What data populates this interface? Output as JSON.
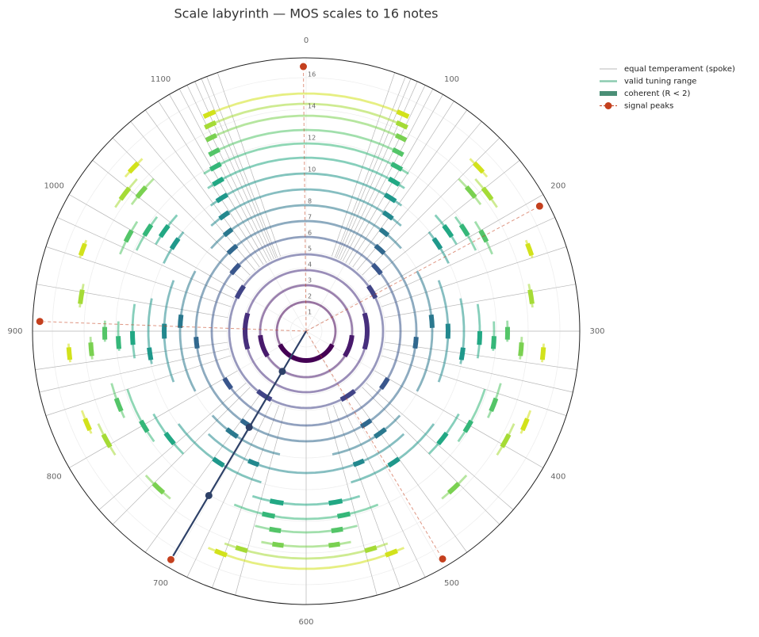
{
  "chart_data": {
    "type": "polar",
    "title": "Scale labyrinth — MOS scales to 16 notes",
    "theta_lim": [
      0,
      1200
    ],
    "theta_ticks": [
      0,
      100,
      200,
      300,
      400,
      500,
      600,
      700,
      800,
      900,
      1000,
      1100
    ],
    "rlim": [
      0,
      17.25
    ],
    "rticks": [
      1,
      2,
      3,
      4,
      5,
      6,
      7,
      8,
      10,
      12,
      14,
      16
    ],
    "legend": "upper right",
    "spokes": {
      "name": "equal temperament (spoke)",
      "color": "#b8b8b8",
      "values": [
        63,
        71,
        75,
        80,
        86,
        92,
        100,
        109,
        120,
        133,
        150,
        171,
        200,
        218,
        240,
        267,
        300,
        327,
        343,
        360,
        400,
        436,
        450,
        480,
        514,
        533,
        550,
        600,
        650,
        667,
        686,
        720,
        750,
        764,
        800,
        840,
        857,
        873,
        900,
        933,
        960,
        982,
        1000,
        1029,
        1050,
        1067,
        1080,
        1091,
        1100,
        1108,
        1114,
        1120,
        1125,
        1129,
        1137
      ]
    },
    "rings": {
      "name": "valid tuning range",
      "legend_color": "#8ccbb0",
      "coherent_name": "coherent (R < 2)",
      "coherent_color": "#4a8f76",
      "items": [
        {
          "level": 1.85,
          "color": "#440154",
          "arcs": [
            [
              0,
              1200
            ]
          ],
          "coherent": [
            [
              390,
              810
            ]
          ]
        },
        {
          "level": 2.9,
          "color": "#481a6c",
          "arcs": [
            [
              0,
              1200
            ]
          ],
          "coherent": [
            [
              317,
              410
            ],
            [
              790,
              883
            ]
          ]
        },
        {
          "level": 3.85,
          "color": "#472f7d",
          "arcs": [
            [
              0,
              1200
            ]
          ],
          "coherent": [
            [
              243,
              357
            ],
            [
              843,
              957
            ]
          ]
        },
        {
          "level": 4.85,
          "color": "#414487",
          "arcs": [
            [
              0,
              1200
            ]
          ],
          "coherent": [
            [
              180,
              215
            ],
            [
              985,
              1020
            ],
            [
              470,
              510
            ],
            [
              690,
              730
            ]
          ]
        },
        {
          "level": 5.95,
          "color": "#39568c",
          "arcs": [
            [
              0,
              1200
            ]
          ],
          "coherent": [
            [
              150,
              175
            ],
            [
              1025,
              1050
            ],
            [
              400,
              425
            ],
            [
              775,
              800
            ]
          ]
        },
        {
          "level": 6.95,
          "color": "#31688e",
          "arcs": [
            [
              0,
              1200
            ]
          ],
          "coherent": [
            [
              130,
              150
            ],
            [
              1050,
              1070
            ],
            [
              310,
              330
            ],
            [
              870,
              890
            ],
            [
              480,
              500
            ],
            [
              700,
              720
            ]
          ]
        },
        {
          "level": 7.95,
          "color": "#2a788e",
          "arcs": [
            [
              1037,
              163
            ],
            [
              205,
              395
            ],
            [
              440,
              560
            ],
            [
              640,
              760
            ],
            [
              805,
              995
            ]
          ],
          "coherent": [
            [
              120,
              135
            ],
            [
              1065,
              1080
            ],
            [
              275,
              295
            ],
            [
              905,
              925
            ],
            [
              470,
              490
            ],
            [
              710,
              730
            ]
          ]
        },
        {
          "level": 8.95,
          "color": "#23888e",
          "arcs": [
            [
              1060,
              140
            ],
            [
              230,
              370
            ],
            [
              455,
              745
            ],
            [
              830,
              970
            ]
          ],
          "coherent": [
            [
              110,
              125
            ],
            [
              1075,
              1090
            ],
            [
              290,
              310
            ],
            [
              890,
              910
            ],
            [
              520,
              535
            ],
            [
              665,
              680
            ]
          ]
        },
        {
          "level": 9.95,
          "color": "#1f988b",
          "arcs": [
            [
              1076,
              124
            ],
            [
              170,
              215
            ],
            [
              260,
              340
            ],
            [
              420,
              545
            ],
            [
              655,
              780
            ],
            [
              860,
              940
            ],
            [
              985,
              1030
            ]
          ],
          "coherent": [
            [
              100,
              115
            ],
            [
              1085,
              1100
            ],
            [
              180,
              195
            ],
            [
              1005,
              1020
            ],
            [
              320,
              335
            ],
            [
              865,
              880
            ],
            [
              480,
              495
            ],
            [
              705,
              720
            ]
          ]
        },
        {
          "level": 10.95,
          "color": "#22a884",
          "arcs": [
            [
              1085,
              115
            ],
            [
              160,
              200
            ],
            [
              270,
              330
            ],
            [
              395,
              450
            ],
            [
              540,
              660
            ],
            [
              750,
              805
            ],
            [
              870,
              930
            ],
            [
              1000,
              1040
            ]
          ],
          "coherent": [
            [
              95,
              108
            ],
            [
              1092,
              1105
            ],
            [
              175,
              190
            ],
            [
              1010,
              1025
            ],
            [
              300,
              315
            ],
            [
              885,
              900
            ],
            [
              420,
              435
            ],
            [
              765,
              780
            ],
            [
              560,
              575
            ],
            [
              625,
              640
            ]
          ]
        },
        {
          "level": 11.85,
          "color": "#35b779",
          "arcs": [
            [
              1090,
              110
            ],
            [
              175,
              215
            ],
            [
              290,
              320
            ],
            [
              360,
              420
            ],
            [
              525,
              675
            ],
            [
              780,
              840
            ],
            [
              880,
              910
            ],
            [
              985,
              1025
            ]
          ],
          "coherent": [
            [
              90,
              102
            ],
            [
              1098,
              1110
            ],
            [
              185,
              198
            ],
            [
              1002,
              1015
            ],
            [
              305,
              318
            ],
            [
              882,
              895
            ],
            [
              395,
              408
            ],
            [
              792,
              805
            ],
            [
              555,
              568
            ],
            [
              632,
              645
            ]
          ]
        },
        {
          "level": 12.7,
          "color": "#54c568",
          "arcs": [
            [
              1104,
              96
            ],
            [
              190,
              225
            ],
            [
              290,
              310
            ],
            [
              350,
              385
            ],
            [
              551,
              649
            ],
            [
              815,
              850
            ],
            [
              890,
              910
            ],
            [
              975,
              1010
            ]
          ],
          "coherent": [
            [
              85,
              96
            ],
            [
              1104,
              1115
            ],
            [
              200,
              212
            ],
            [
              988,
              1000
            ],
            [
              296,
              308
            ],
            [
              892,
              904
            ],
            [
              365,
              378
            ],
            [
              822,
              835
            ],
            [
              565,
              576
            ],
            [
              624,
              635
            ]
          ]
        },
        {
          "level": 13.6,
          "color": "#7ad151",
          "arcs": [
            [
              1108,
              92
            ],
            [
              150,
              180
            ],
            [
              305,
              325
            ],
            [
              440,
              470
            ],
            [
              560,
              640
            ],
            [
              730,
              760
            ],
            [
              875,
              895
            ],
            [
              1020,
              1050
            ]
          ],
          "coherent": [
            [
              82,
              92
            ],
            [
              1108,
              1118
            ],
            [
              160,
              172
            ],
            [
              1028,
              1040
            ],
            [
              310,
              322
            ],
            [
              878,
              890
            ],
            [
              450,
              462
            ],
            [
              738,
              750
            ],
            [
              570,
              580
            ],
            [
              620,
              630
            ]
          ]
        },
        {
          "level": 14.35,
          "color": "#a5db36",
          "arcs": [
            [
              1112,
              88
            ],
            [
              160,
              190
            ],
            [
              260,
              280
            ],
            [
              380,
              410
            ],
            [
              530,
              670
            ],
            [
              790,
              820
            ],
            [
              920,
              940
            ],
            [
              1010,
              1040
            ]
          ],
          "coherent": [
            [
              78,
              88
            ],
            [
              1112,
              1122
            ],
            [
              170,
              182
            ],
            [
              1018,
              1030
            ],
            [
              265,
              277
            ],
            [
              923,
              935
            ],
            [
              390,
              402
            ],
            [
              798,
              810
            ],
            [
              540,
              550
            ],
            [
              650,
              660
            ]
          ]
        },
        {
          "level": 15.0,
          "color": "#d2e21b",
          "arcs": [
            [
              1119,
              81
            ],
            [
              145,
              165
            ],
            [
              225,
              240
            ],
            [
              310,
              325
            ],
            [
              365,
              385
            ],
            [
              519,
              681
            ],
            [
              815,
              835
            ],
            [
              875,
              890
            ],
            [
              960,
              975
            ],
            [
              1035,
              1055
            ]
          ],
          "coherent": [
            [
              75,
              85
            ],
            [
              1115,
              1125
            ],
            [
              150,
              160
            ],
            [
              1040,
              1050
            ],
            [
              228,
              238
            ],
            [
              962,
              972
            ],
            [
              313,
              323
            ],
            [
              877,
              887
            ],
            [
              372,
              382
            ],
            [
              818,
              828
            ],
            [
              525,
              535
            ],
            [
              665,
              675
            ]
          ]
        }
      ]
    },
    "peaks": {
      "name": "signal peaks",
      "color": "#c4401e",
      "theta": [
        1198,
        206,
        907,
        497,
        702
      ],
      "r": [
        16.7,
        16.7,
        16.8,
        16.75,
        16.75
      ]
    },
    "path": {
      "color": "#2e4168",
      "theta": [
        0,
        702
      ],
      "r": [
        0,
        16.75
      ],
      "markers": {
        "theta": [
          702,
          702,
          702
        ],
        "r": [
          2.95,
          7.05,
          12.05
        ]
      }
    }
  }
}
